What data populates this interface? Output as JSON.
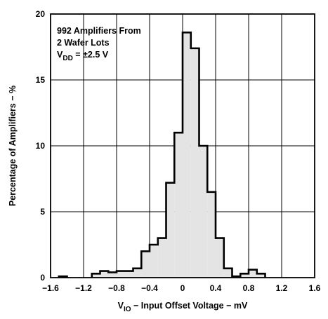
{
  "chart_data": {
    "type": "histogram",
    "xlabel": {
      "prefix": "V",
      "subscript": "IO",
      "rest": " − Input Offset Voltage − mV"
    },
    "ylabel": "Percentage of Amplifiers − %",
    "xlim": [
      -1.6,
      1.6
    ],
    "ylim": [
      0,
      20
    ],
    "x_ticks": [
      -1.6,
      -1.2,
      -0.8,
      -0.4,
      0,
      0.4,
      0.8,
      1.2,
      1.6
    ],
    "x_tick_labels": [
      "−1.6",
      "−1.2",
      "−0.8",
      "−0.4",
      "0",
      "0.4",
      "0.8",
      "1.2",
      "1.6"
    ],
    "y_ticks": [
      0,
      5,
      10,
      15,
      20
    ],
    "y_tick_labels": [
      "0",
      "5",
      "10",
      "15",
      "20"
    ],
    "grid": true,
    "bin_width": 0.1,
    "bins": [
      {
        "x0": -1.5,
        "x1": -1.4,
        "value": 0.1
      },
      {
        "x0": -1.1,
        "x1": -1.0,
        "value": 0.3
      },
      {
        "x0": -1.0,
        "x1": -0.9,
        "value": 0.5
      },
      {
        "x0": -0.9,
        "x1": -0.8,
        "value": 0.4
      },
      {
        "x0": -0.8,
        "x1": -0.7,
        "value": 0.5
      },
      {
        "x0": -0.7,
        "x1": -0.6,
        "value": 0.5
      },
      {
        "x0": -0.6,
        "x1": -0.5,
        "value": 0.7
      },
      {
        "x0": -0.5,
        "x1": -0.4,
        "value": 2.0
      },
      {
        "x0": -0.4,
        "x1": -0.3,
        "value": 2.5
      },
      {
        "x0": -0.3,
        "x1": -0.2,
        "value": 3.0
      },
      {
        "x0": -0.2,
        "x1": -0.1,
        "value": 7.2
      },
      {
        "x0": -0.1,
        "x1": 0.0,
        "value": 11.0
      },
      {
        "x0": 0.0,
        "x1": 0.1,
        "value": 18.6
      },
      {
        "x0": 0.1,
        "x1": 0.2,
        "value": 17.4
      },
      {
        "x0": 0.2,
        "x1": 0.3,
        "value": 10.0
      },
      {
        "x0": 0.3,
        "x1": 0.4,
        "value": 6.5
      },
      {
        "x0": 0.4,
        "x1": 0.5,
        "value": 3.0
      },
      {
        "x0": 0.5,
        "x1": 0.6,
        "value": 0.7
      },
      {
        "x0": 0.6,
        "x1": 0.7,
        "value": 0.1
      },
      {
        "x0": 0.7,
        "x1": 0.8,
        "value": 0.3
      },
      {
        "x0": 0.8,
        "x1": 0.9,
        "value": 0.6
      },
      {
        "x0": 0.9,
        "x1": 1.0,
        "value": 0.3
      }
    ],
    "annotation": {
      "line1": "992 Amplifiers From",
      "line2": "2 Wafer Lots",
      "line3_prefix": "V",
      "line3_subscript": "DD",
      "line3_rest": " = ±2.5 V"
    },
    "colors": {
      "fill": "#e4e4e4",
      "outline": "#000000",
      "grid": "#000000",
      "background": "#ffffff"
    }
  }
}
